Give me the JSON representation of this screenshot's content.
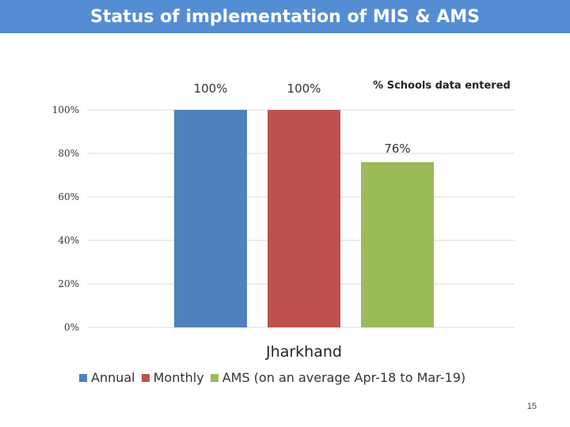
{
  "slide": {
    "title": "Status of implementation of MIS & AMS",
    "page_number": "15",
    "title_bar_color": "#548dd4"
  },
  "chart_data": {
    "type": "bar",
    "categories": [
      "Jharkhand"
    ],
    "series": [
      {
        "name": "Annual",
        "values": [
          100
        ],
        "label": "100%",
        "color": "#4f81bd"
      },
      {
        "name": "Monthly",
        "values": [
          100
        ],
        "label": "100%",
        "color": "#c0504d"
      },
      {
        "name": "AMS (on an average Apr-18 to Mar-19)",
        "values": [
          76
        ],
        "label": "76%",
        "color": "#9bbb59"
      }
    ],
    "annotation": "% Schools data entered",
    "ylim": [
      0,
      100
    ],
    "yticks": [
      "0%",
      "20%",
      "40%",
      "60%",
      "80%",
      "100%"
    ],
    "ytick_values": [
      0,
      20,
      40,
      60,
      80,
      100
    ],
    "grid": true,
    "legend_position": "bottom"
  }
}
